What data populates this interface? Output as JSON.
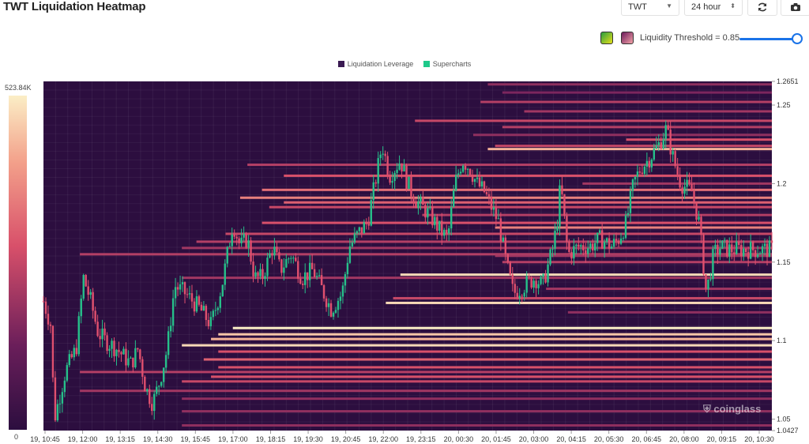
{
  "page_title": "TWT Liquidation Heatmap",
  "toolbar": {
    "symbol": "TWT",
    "range": "24 hour",
    "refresh_icon": "refresh-icon",
    "camera_icon": "camera-icon"
  },
  "threshold": {
    "label": "Liquidity Threshold = 0.85",
    "value": 0.85,
    "swatch_a_colors": [
      "#2a9d3f",
      "#e6e01a"
    ],
    "swatch_b_colors": [
      "#6b1a5a",
      "#f4a3a8"
    ]
  },
  "legend": [
    {
      "name": "Liquidation Leverage",
      "color": "#3a1a52"
    },
    {
      "name": "Supercharts",
      "color": "#1fc98a"
    }
  ],
  "colorscale": {
    "max_label": "523.84K",
    "min_label": "0"
  },
  "watermark": "coinglass",
  "chart_data": {
    "type": "heatmap",
    "title": "TWT Liquidation Heatmap",
    "x_ticks": [
      "19, 10:45",
      "19, 12:00",
      "19, 13:15",
      "19, 14:30",
      "19, 15:45",
      "19, 17:00",
      "19, 18:15",
      "19, 19:30",
      "19, 20:45",
      "19, 22:00",
      "19, 23:15",
      "20, 00:30",
      "20, 01:45",
      "20, 03:00",
      "20, 04:15",
      "20, 05:30",
      "20, 06:45",
      "20, 08:00",
      "20, 09:15",
      "20, 10:30"
    ],
    "y_ticks": [
      1.2651,
      1.25,
      1.2,
      1.15,
      1.1,
      1.05,
      1.0427
    ],
    "y_tick_labels": [
      "1.2651",
      "1.25",
      "1.2",
      "1.15",
      "1.1",
      "1.05",
      "1.0427"
    ],
    "ylim": [
      1.0427,
      1.2651
    ],
    "colorscale_range": [
      0,
      523840
    ],
    "colors": {
      "background": "#2c0e3f",
      "up": "#26c08a",
      "down": "#e0506e"
    },
    "liquidation_bands": [
      {
        "price": 1.2632,
        "start": 0.61,
        "intensity": 0.35
      },
      {
        "price": 1.258,
        "start": 0.63,
        "intensity": 0.3
      },
      {
        "price": 1.252,
        "start": 0.6,
        "intensity": 0.45
      },
      {
        "price": 1.246,
        "start": 0.66,
        "intensity": 0.4
      },
      {
        "price": 1.24,
        "start": 0.51,
        "intensity": 0.5
      },
      {
        "price": 1.236,
        "start": 0.63,
        "intensity": 0.45
      },
      {
        "price": 1.231,
        "start": 0.59,
        "intensity": 0.35
      },
      {
        "price": 1.228,
        "start": 0.8,
        "intensity": 0.55
      },
      {
        "price": 1.224,
        "start": 0.62,
        "intensity": 0.5
      },
      {
        "price": 1.222,
        "start": 0.61,
        "intensity": 0.85
      },
      {
        "price": 1.212,
        "start": 0.28,
        "intensity": 0.45
      },
      {
        "price": 1.205,
        "start": 0.33,
        "intensity": 0.55
      },
      {
        "price": 1.2,
        "start": 0.74,
        "intensity": 0.4
      },
      {
        "price": 1.196,
        "start": 0.3,
        "intensity": 0.65
      },
      {
        "price": 1.191,
        "start": 0.27,
        "intensity": 0.7
      },
      {
        "price": 1.188,
        "start": 0.33,
        "intensity": 0.6
      },
      {
        "price": 1.185,
        "start": 0.31,
        "intensity": 0.5
      },
      {
        "price": 1.18,
        "start": 0.52,
        "intensity": 0.45
      },
      {
        "price": 1.175,
        "start": 0.3,
        "intensity": 0.55
      },
      {
        "price": 1.172,
        "start": 0.62,
        "intensity": 0.7
      },
      {
        "price": 1.168,
        "start": 0.25,
        "intensity": 0.5
      },
      {
        "price": 1.163,
        "start": 0.21,
        "intensity": 0.45
      },
      {
        "price": 1.159,
        "start": 0.19,
        "intensity": 0.4
      },
      {
        "price": 1.155,
        "start": 0.05,
        "intensity": 0.45
      },
      {
        "price": 1.154,
        "start": 0.62,
        "intensity": 0.4
      },
      {
        "price": 1.15,
        "start": 0.63,
        "intensity": 0.45
      },
      {
        "price": 1.142,
        "start": 0.49,
        "intensity": 0.95
      },
      {
        "price": 1.14,
        "start": 0.19,
        "intensity": 0.4
      },
      {
        "price": 1.133,
        "start": 0.69,
        "intensity": 0.4
      },
      {
        "price": 1.127,
        "start": 0.48,
        "intensity": 0.5
      },
      {
        "price": 1.124,
        "start": 0.47,
        "intensity": 0.95
      },
      {
        "price": 1.118,
        "start": 0.72,
        "intensity": 0.35
      },
      {
        "price": 1.108,
        "start": 0.26,
        "intensity": 1.0
      },
      {
        "price": 1.104,
        "start": 0.24,
        "intensity": 0.9
      },
      {
        "price": 1.101,
        "start": 0.23,
        "intensity": 0.85
      },
      {
        "price": 1.097,
        "start": 0.19,
        "intensity": 0.95
      },
      {
        "price": 1.093,
        "start": 0.24,
        "intensity": 0.55
      },
      {
        "price": 1.088,
        "start": 0.22,
        "intensity": 0.6
      },
      {
        "price": 1.083,
        "start": 0.24,
        "intensity": 0.55
      },
      {
        "price": 1.08,
        "start": 0.05,
        "intensity": 0.45
      },
      {
        "price": 1.077,
        "start": 0.23,
        "intensity": 0.55
      },
      {
        "price": 1.074,
        "start": 0.19,
        "intensity": 0.5
      },
      {
        "price": 1.068,
        "start": 0.05,
        "intensity": 0.4
      },
      {
        "price": 1.063,
        "start": 0.19,
        "intensity": 0.35
      },
      {
        "price": 1.055,
        "start": 0.19,
        "intensity": 0.35
      },
      {
        "price": 1.046,
        "start": 0.19,
        "intensity": 0.35
      }
    ],
    "price_path": [
      [
        0.0,
        1.125
      ],
      [
        0.01,
        1.11
      ],
      [
        0.015,
        1.05
      ],
      [
        0.03,
        1.08
      ],
      [
        0.045,
        1.095
      ],
      [
        0.055,
        1.14
      ],
      [
        0.065,
        1.125
      ],
      [
        0.075,
        1.105
      ],
      [
        0.085,
        1.1
      ],
      [
        0.1,
        1.095
      ],
      [
        0.11,
        1.09
      ],
      [
        0.12,
        1.085
      ],
      [
        0.13,
        1.095
      ],
      [
        0.14,
        1.07
      ],
      [
        0.15,
        1.06
      ],
      [
        0.16,
        1.075
      ],
      [
        0.17,
        1.095
      ],
      [
        0.18,
        1.135
      ],
      [
        0.195,
        1.13
      ],
      [
        0.205,
        1.125
      ],
      [
        0.215,
        1.12
      ],
      [
        0.23,
        1.11
      ],
      [
        0.245,
        1.135
      ],
      [
        0.26,
        1.175
      ],
      [
        0.27,
        1.16
      ],
      [
        0.28,
        1.165
      ],
      [
        0.29,
        1.14
      ],
      [
        0.3,
        1.14
      ],
      [
        0.315,
        1.16
      ],
      [
        0.325,
        1.145
      ],
      [
        0.34,
        1.155
      ],
      [
        0.355,
        1.14
      ],
      [
        0.37,
        1.145
      ],
      [
        0.38,
        1.135
      ],
      [
        0.395,
        1.12
      ],
      [
        0.41,
        1.13
      ],
      [
        0.42,
        1.16
      ],
      [
        0.435,
        1.17
      ],
      [
        0.445,
        1.175
      ],
      [
        0.455,
        1.2
      ],
      [
        0.465,
        1.225
      ],
      [
        0.475,
        1.205
      ],
      [
        0.49,
        1.215
      ],
      [
        0.5,
        1.2
      ],
      [
        0.51,
        1.19
      ],
      [
        0.52,
        1.185
      ],
      [
        0.53,
        1.18
      ],
      [
        0.545,
        1.17
      ],
      [
        0.555,
        1.165
      ],
      [
        0.565,
        1.2
      ],
      [
        0.575,
        1.215
      ],
      [
        0.585,
        1.21
      ],
      [
        0.595,
        1.2
      ],
      [
        0.605,
        1.195
      ],
      [
        0.615,
        1.185
      ],
      [
        0.625,
        1.175
      ],
      [
        0.635,
        1.15
      ],
      [
        0.645,
        1.13
      ],
      [
        0.66,
        1.135
      ],
      [
        0.675,
        1.14
      ],
      [
        0.685,
        1.135
      ],
      [
        0.7,
        1.16
      ],
      [
        0.705,
        1.175
      ],
      [
        0.71,
        1.2
      ],
      [
        0.72,
        1.155
      ],
      [
        0.735,
        1.16
      ],
      [
        0.75,
        1.16
      ],
      [
        0.765,
        1.165
      ],
      [
        0.78,
        1.16
      ],
      [
        0.79,
        1.165
      ],
      [
        0.8,
        1.175
      ],
      [
        0.81,
        1.2
      ],
      [
        0.82,
        1.21
      ],
      [
        0.83,
        1.215
      ],
      [
        0.845,
        1.225
      ],
      [
        0.855,
        1.235
      ],
      [
        0.865,
        1.215
      ],
      [
        0.875,
        1.2
      ],
      [
        0.89,
        1.195
      ],
      [
        0.9,
        1.175
      ],
      [
        0.91,
        1.13
      ],
      [
        0.92,
        1.155
      ],
      [
        0.93,
        1.16
      ],
      [
        0.94,
        1.158
      ]
    ]
  }
}
